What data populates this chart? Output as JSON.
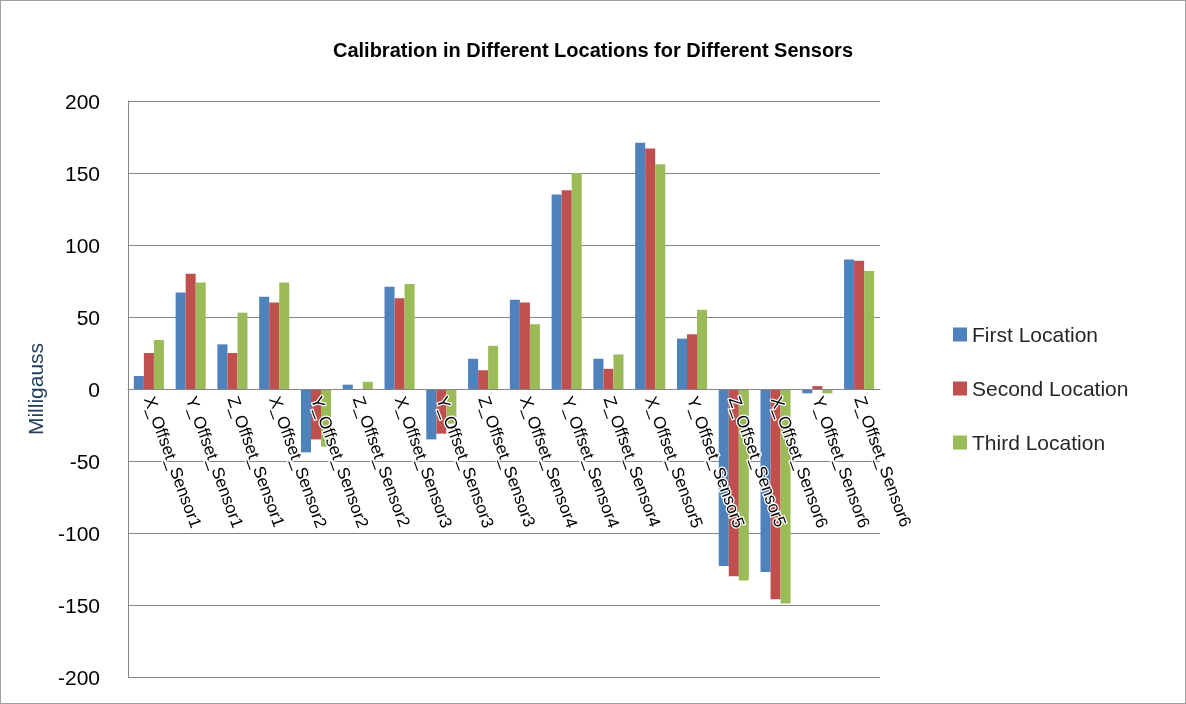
{
  "chart_data": {
    "type": "bar",
    "title": "Calibration in Different Locations for Different Sensors",
    "ylabel": "Milligauss",
    "categories": [
      "X_Offset_Sensor1",
      "Y_Offset_Sensor1",
      "Z_Offset_Sensor1",
      "X_Offset_Sensor2",
      "Y_Offset_Sensor2",
      "Z_Offset_Sensor2",
      "X_Offset_Sensor3",
      "Y_Offset_Sensor3",
      "Z_Offset_Sensor3",
      "X_Offset_Sensor4",
      "Y_Offset_Sensor4",
      "Z_Offset_Sensor4",
      "X_Offset_Sensor5",
      "Y_Offset_Sensor5",
      "Z_Offset_Sensor5",
      "X_Offset_Sensor6",
      "Y_Offset_Sensor6",
      "Z_Offset_Sensor6"
    ],
    "series": [
      {
        "name": "First Location",
        "color": "#4f81bd",
        "values": [
          9,
          67,
          31,
          64,
          -44,
          3,
          71,
          -35,
          21,
          62,
          135,
          21,
          171,
          35,
          -123,
          -127,
          -3,
          90
        ]
      },
      {
        "name": "Second Location",
        "color": "#c0504d",
        "values": [
          25,
          80,
          25,
          60,
          -35,
          0,
          63,
          -31,
          13,
          60,
          138,
          14,
          167,
          38,
          -130,
          -146,
          2,
          89
        ]
      },
      {
        "name": "Third Location",
        "color": "#9bbb59",
        "values": [
          34,
          74,
          53,
          74,
          -40,
          5,
          73,
          -24,
          30,
          45,
          150,
          24,
          156,
          55,
          -133,
          -149,
          -3,
          82
        ]
      }
    ],
    "ylim": [
      -200,
      200
    ],
    "yticks": [
      -200,
      -150,
      -100,
      -50,
      0,
      50,
      100,
      150,
      200
    ],
    "grid": "y",
    "legend": "right"
  }
}
